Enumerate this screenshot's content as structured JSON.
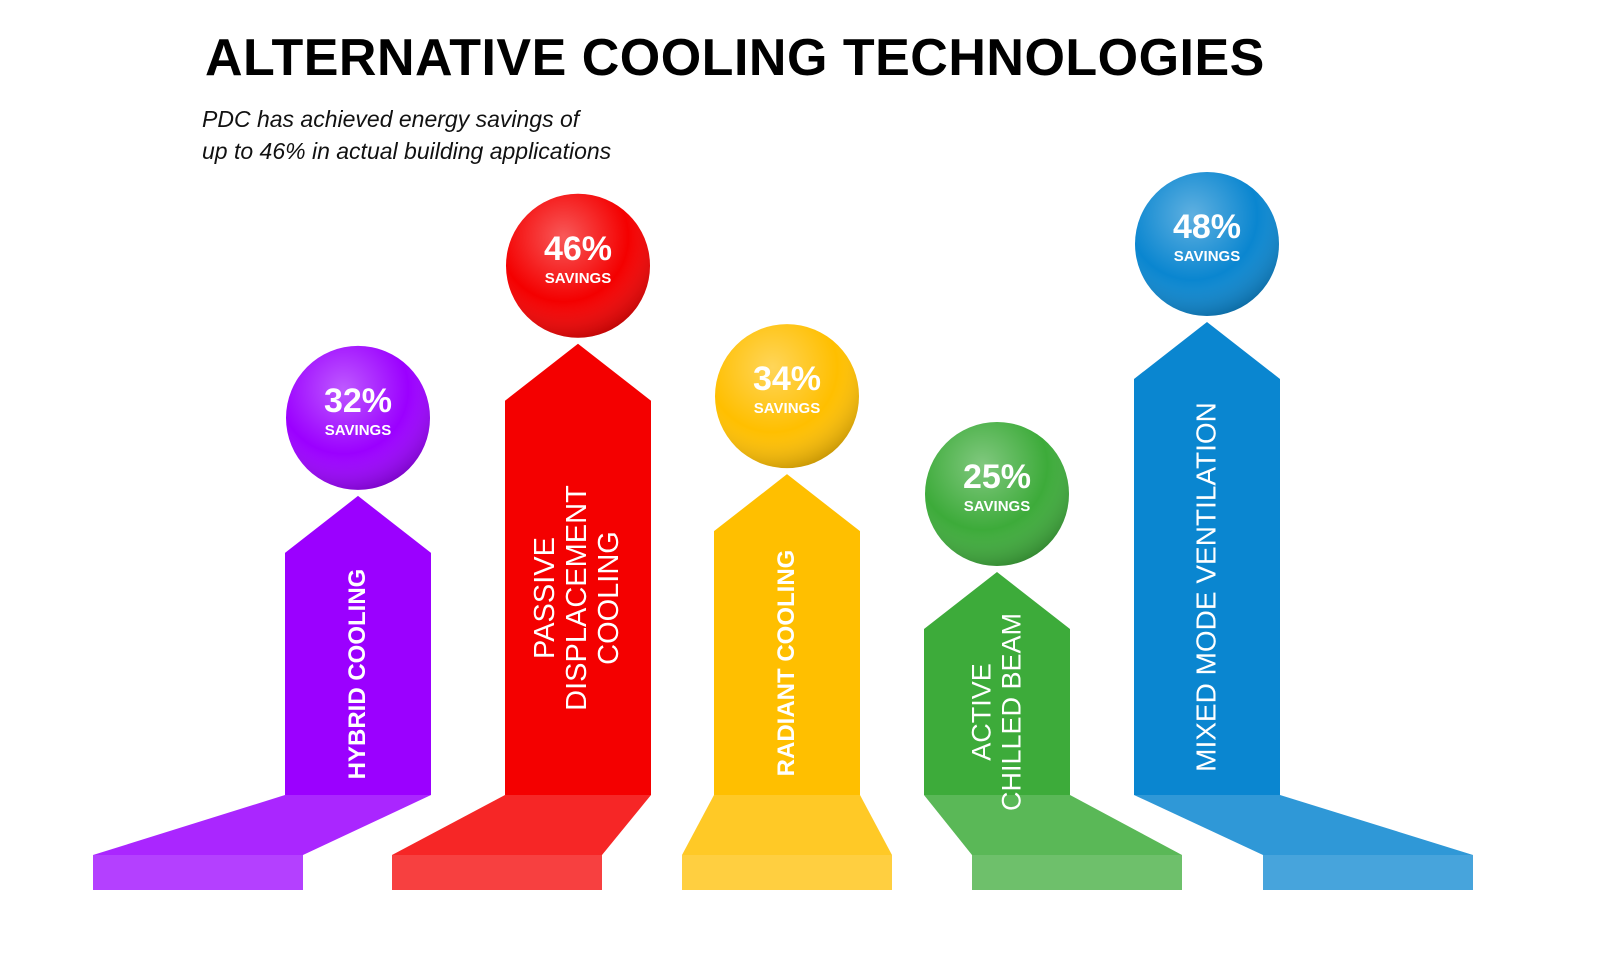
{
  "chart_data": {
    "type": "arrow",
    "title": "ALTERNATIVE COOLING TECHNOLOGIES",
    "subtitle": [
      "PDC has achieved energy savings of",
      "up to 46% in actual building applications"
    ],
    "categories": [
      "HYBRID COOLING",
      "PASSIVE DISPLACEMENT COOLING",
      "RADIANT COOLING",
      "ACTIVE CHILLED BEAM",
      "MIXED MODE VENTILATION"
    ],
    "values": [
      32,
      46,
      34,
      25,
      48
    ],
    "value_labels": [
      "32%",
      "46%",
      "34%",
      "25%",
      "48%"
    ],
    "value_caption": "SAVINGS",
    "colors": [
      "#9b00ff",
      "#f40000",
      "#ffbf00",
      "#3dab3a",
      "#0a86d0"
    ]
  }
}
